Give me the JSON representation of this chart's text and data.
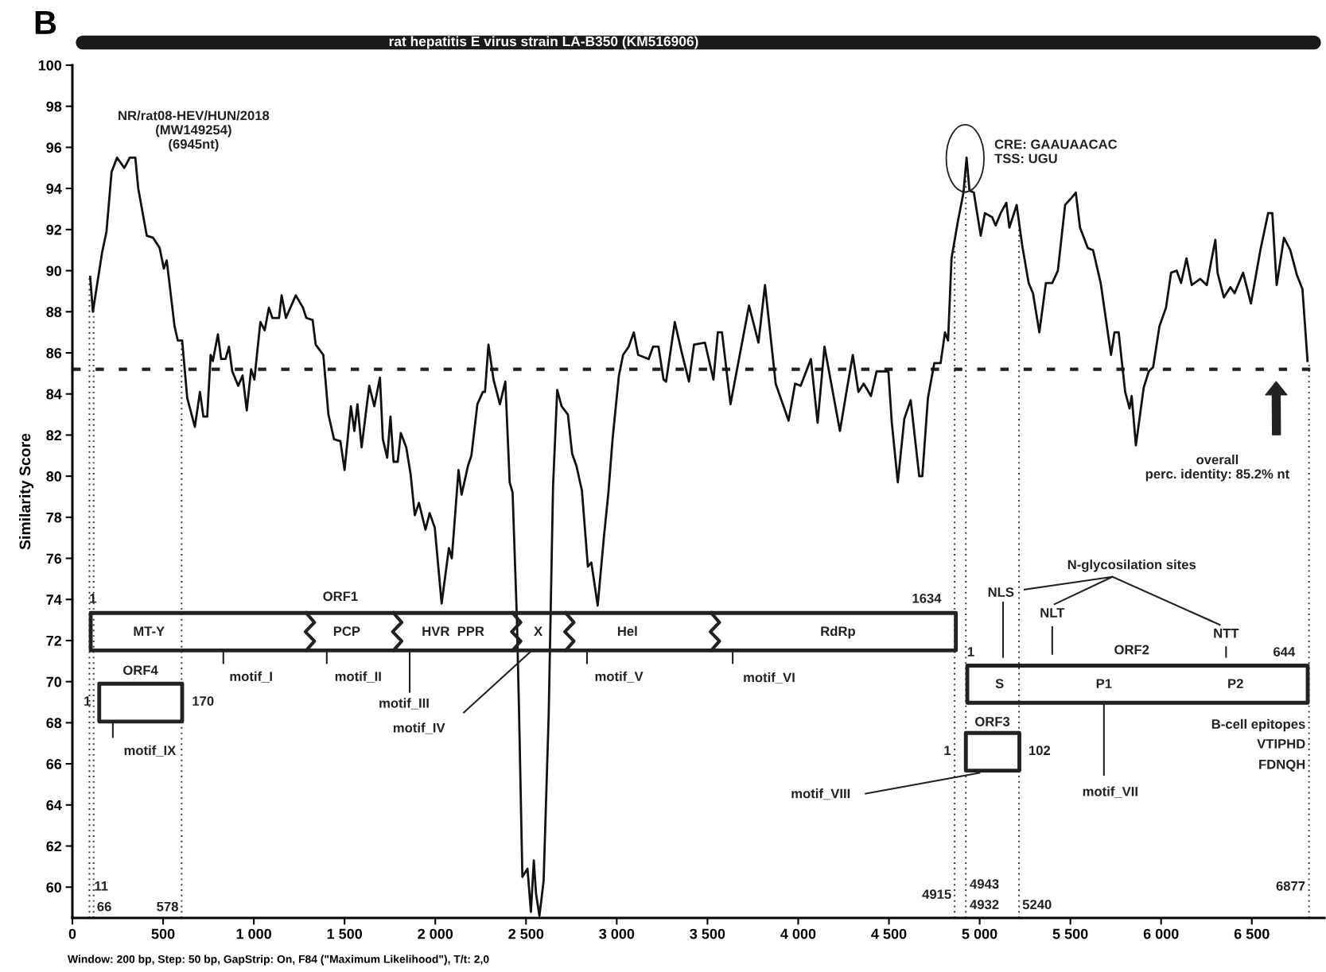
{
  "chart_data": {
    "type": "line",
    "title": "rat hepatitis E virus strain LA-B350 (KM516906)",
    "ylabel": "Similarity Score",
    "xlim": [
      0,
      6900
    ],
    "ylim": [
      58.5,
      100
    ],
    "xticks": [
      0,
      500,
      {
        "value": 1000,
        "label": "1 000"
      },
      {
        "value": 1500,
        "label": "1 500"
      },
      {
        "value": 2000,
        "label": "2 000"
      },
      {
        "value": 2500,
        "label": "2 500"
      },
      {
        "value": 3000,
        "label": "3 000"
      },
      {
        "value": 3500,
        "label": "3 500"
      },
      {
        "value": 4000,
        "label": "4 000"
      },
      {
        "value": 4500,
        "label": "4 500"
      },
      {
        "value": 5000,
        "label": "5 000"
      },
      {
        "value": 5500,
        "label": "5 500"
      },
      {
        "value": 6000,
        "label": "6 000"
      },
      {
        "value": 6500,
        "label": "6 500"
      }
    ],
    "yticks": [
      60,
      62,
      64,
      66,
      68,
      70,
      72,
      74,
      76,
      78,
      80,
      82,
      84,
      86,
      88,
      90,
      92,
      94,
      96,
      98,
      100
    ],
    "series": [
      {
        "color": "#111111",
        "x": [
          98,
          113,
          164,
          188,
          216,
          246,
          286,
          316,
          347,
          363,
          410,
          445,
          481,
          504,
          520,
          563,
          581,
          605,
          633,
          675,
          703,
          722,
          743,
          762,
          774,
          802,
          820,
          844,
          863,
          881,
          914,
          938,
          961,
          985,
          1003,
          1036,
          1060,
          1083,
          1102,
          1139,
          1153,
          1177,
          1231,
          1271,
          1289,
          1324,
          1341,
          1383,
          1411,
          1442,
          1477,
          1500,
          1535,
          1554,
          1571,
          1594,
          1636,
          1664,
          1695,
          1711,
          1735,
          1753,
          1770,
          1793,
          1810,
          1840,
          1864,
          1887,
          1910,
          1946,
          1969,
          1997,
          2035,
          2075,
          2091,
          2128,
          2145,
          2180,
          2199,
          2232,
          2262,
          2274,
          2293,
          2321,
          2356,
          2386,
          2410,
          2426,
          2450,
          2461,
          2480,
          2508,
          2527,
          2543,
          2555,
          2574,
          2597,
          2625,
          2649,
          2672,
          2696,
          2731,
          2754,
          2778,
          2808,
          2841,
          2860,
          2895,
          2930,
          2954,
          2977,
          3012,
          3035,
          3066,
          3094,
          3118,
          3176,
          3200,
          3230,
          3258,
          3272,
          3320,
          3356,
          3398,
          3426,
          3486,
          3533,
          3557,
          3580,
          3627,
          3729,
          3781,
          3817,
          3876,
          3947,
          3983,
          4014,
          4070,
          4107,
          4145,
          4230,
          4266,
          4301,
          4332,
          4361,
          4401,
          4432,
          4468,
          4497,
          4516,
          4549,
          4585,
          4620,
          4667,
          4684,
          4715,
          4750,
          4785,
          4809,
          4826,
          4845,
          4880,
          4911,
          4928,
          4944,
          4968,
          5006,
          5029,
          5069,
          5088,
          5116,
          5147,
          5164,
          5204,
          5235,
          5270,
          5294,
          5329,
          5365,
          5400,
          5431,
          5471,
          5502,
          5530,
          5553,
          5596,
          5625,
          5667,
          5724,
          5743,
          5766,
          5802,
          5826,
          5838,
          5861,
          5904,
          5932,
          5956,
          5991,
          6027,
          6055,
          6086,
          6110,
          6140,
          6169,
          6216,
          6252,
          6275,
          6299,
          6311,
          6346,
          6382,
          6405,
          6452,
          6495,
          6547,
          6590,
          6613,
          6637,
          6677,
          6712,
          6748,
          6779,
          6807
        ],
        "values": [
          89.7,
          88.0,
          90.9,
          91.9,
          94.8,
          95.5,
          95.0,
          95.5,
          95.5,
          94.0,
          91.7,
          91.6,
          91.1,
          90.1,
          90.5,
          87.3,
          86.6,
          86.6,
          83.8,
          82.4,
          84.1,
          82.9,
          82.9,
          85.9,
          85.6,
          86.9,
          85.7,
          85.7,
          86.3,
          85.1,
          84.4,
          84.9,
          83.2,
          85.2,
          84.7,
          87.5,
          87.1,
          88.2,
          87.7,
          87.7,
          88.8,
          87.7,
          88.8,
          88.2,
          87.7,
          87.6,
          86.4,
          85.9,
          83.0,
          81.8,
          81.7,
          80.3,
          83.4,
          82.2,
          83.5,
          81.4,
          84.4,
          83.4,
          84.8,
          81.8,
          80.9,
          82.9,
          80.7,
          80.7,
          82.1,
          81.4,
          80.1,
          78.1,
          78.7,
          77.4,
          78.2,
          77.5,
          73.8,
          76.5,
          76.0,
          80.3,
          79.1,
          80.5,
          81.0,
          83.5,
          84.1,
          84.1,
          86.4,
          84.7,
          83.5,
          84.6,
          79.7,
          79.2,
          73.0,
          68.8,
          60.5,
          60.9,
          58.8,
          61.3,
          59.7,
          58.6,
          60.3,
          68.4,
          79.5,
          84.2,
          83.4,
          83.0,
          81.1,
          80.5,
          79.3,
          75.6,
          75.8,
          73.7,
          77.1,
          79.2,
          81.8,
          84.9,
          85.9,
          86.3,
          87.0,
          85.9,
          85.7,
          86.3,
          86.3,
          84.7,
          84.6,
          87.5,
          86.1,
          84.6,
          86.4,
          86.5,
          84.7,
          87.0,
          87.0,
          83.5,
          88.3,
          86.5,
          89.3,
          84.5,
          82.7,
          84.5,
          84.4,
          85.7,
          82.6,
          86.3,
          82.2,
          84.1,
          85.9,
          84.1,
          84.5,
          83.9,
          85.1,
          85.1,
          85.1,
          82.6,
          79.7,
          82.8,
          83.7,
          80.0,
          80.0,
          83.8,
          85.5,
          85.5,
          87.0,
          86.6,
          90.6,
          92.4,
          93.8,
          95.5,
          93.9,
          93.8,
          91.7,
          92.8,
          92.6,
          92.2,
          92.8,
          93.3,
          92.1,
          93.2,
          91.2,
          89.4,
          88.9,
          87.0,
          89.4,
          89.4,
          90.0,
          93.2,
          93.5,
          93.8,
          92.1,
          91.1,
          91.0,
          89.4,
          85.9,
          87.0,
          87.0,
          84.1,
          83.3,
          83.9,
          81.5,
          84.3,
          85.1,
          85.3,
          87.3,
          88.2,
          89.9,
          90.0,
          89.4,
          90.6,
          89.3,
          89.6,
          89.3,
          90.4,
          91.5,
          89.9,
          88.7,
          89.2,
          88.9,
          89.9,
          88.4,
          91.0,
          92.8,
          92.8,
          89.3,
          91.6,
          91.0,
          89.8,
          89.1,
          85.6
        ]
      }
    ],
    "ref_lines": [
      {
        "axis": "y",
        "value": 85.2,
        "color": "#222222",
        "line_style": "dashed"
      },
      {
        "axis": "x",
        "value": 94,
        "color": "#333333",
        "line_style": "dotted"
      },
      {
        "axis": "x",
        "value": 117,
        "color": "#333333",
        "line_style": "dotted"
      },
      {
        "axis": "x",
        "value": 602,
        "color": "#333333",
        "line_style": "dotted"
      },
      {
        "axis": "x",
        "value": 4862,
        "color": "#333333",
        "line_style": "dotted"
      },
      {
        "axis": "x",
        "value": 4924,
        "color": "#333333",
        "line_style": "dotted"
      },
      {
        "axis": "x",
        "value": 5217,
        "color": "#333333",
        "line_style": "dotted"
      },
      {
        "axis": "x",
        "value": 6815,
        "color": "#333333",
        "line_style": "dotted"
      }
    ],
    "annotations": [
      "B",
      "Window: 200 bp, Step: 50 bp, GapStrip: On, F84 (\"Maximum Likelihood\"), T/t: 2,0",
      "overall\nperc. identity: 85.2% nt",
      "NR/rat08-HEV/HUN/2018\n(MW149254)\n(6945nt)",
      "CRE: GAAUAACAC\nTSS: UGU",
      "ORF1",
      "1",
      "1634",
      "MT-Y",
      "PCP",
      "HVR  PPR",
      "X",
      "Hel",
      "RdRp",
      "motif_I",
      "motif_II",
      "motif_III",
      "motif_IV",
      "motif_V",
      "motif_VI",
      "ORF4",
      "1",
      "170",
      "motif_IX",
      "N-glycosilation sites",
      "NLS",
      "NLT",
      "NTT",
      "ORF2",
      "1",
      "644",
      "S",
      "P1",
      "P2",
      "ORF3",
      "1",
      "102",
      "B-cell epitopes",
      "VTIPHD",
      "FDNQH",
      "motif_VIII",
      "motif_VII",
      "11",
      "66",
      "578",
      "4915",
      "4943",
      "4932",
      "5240",
      "6877"
    ]
  }
}
